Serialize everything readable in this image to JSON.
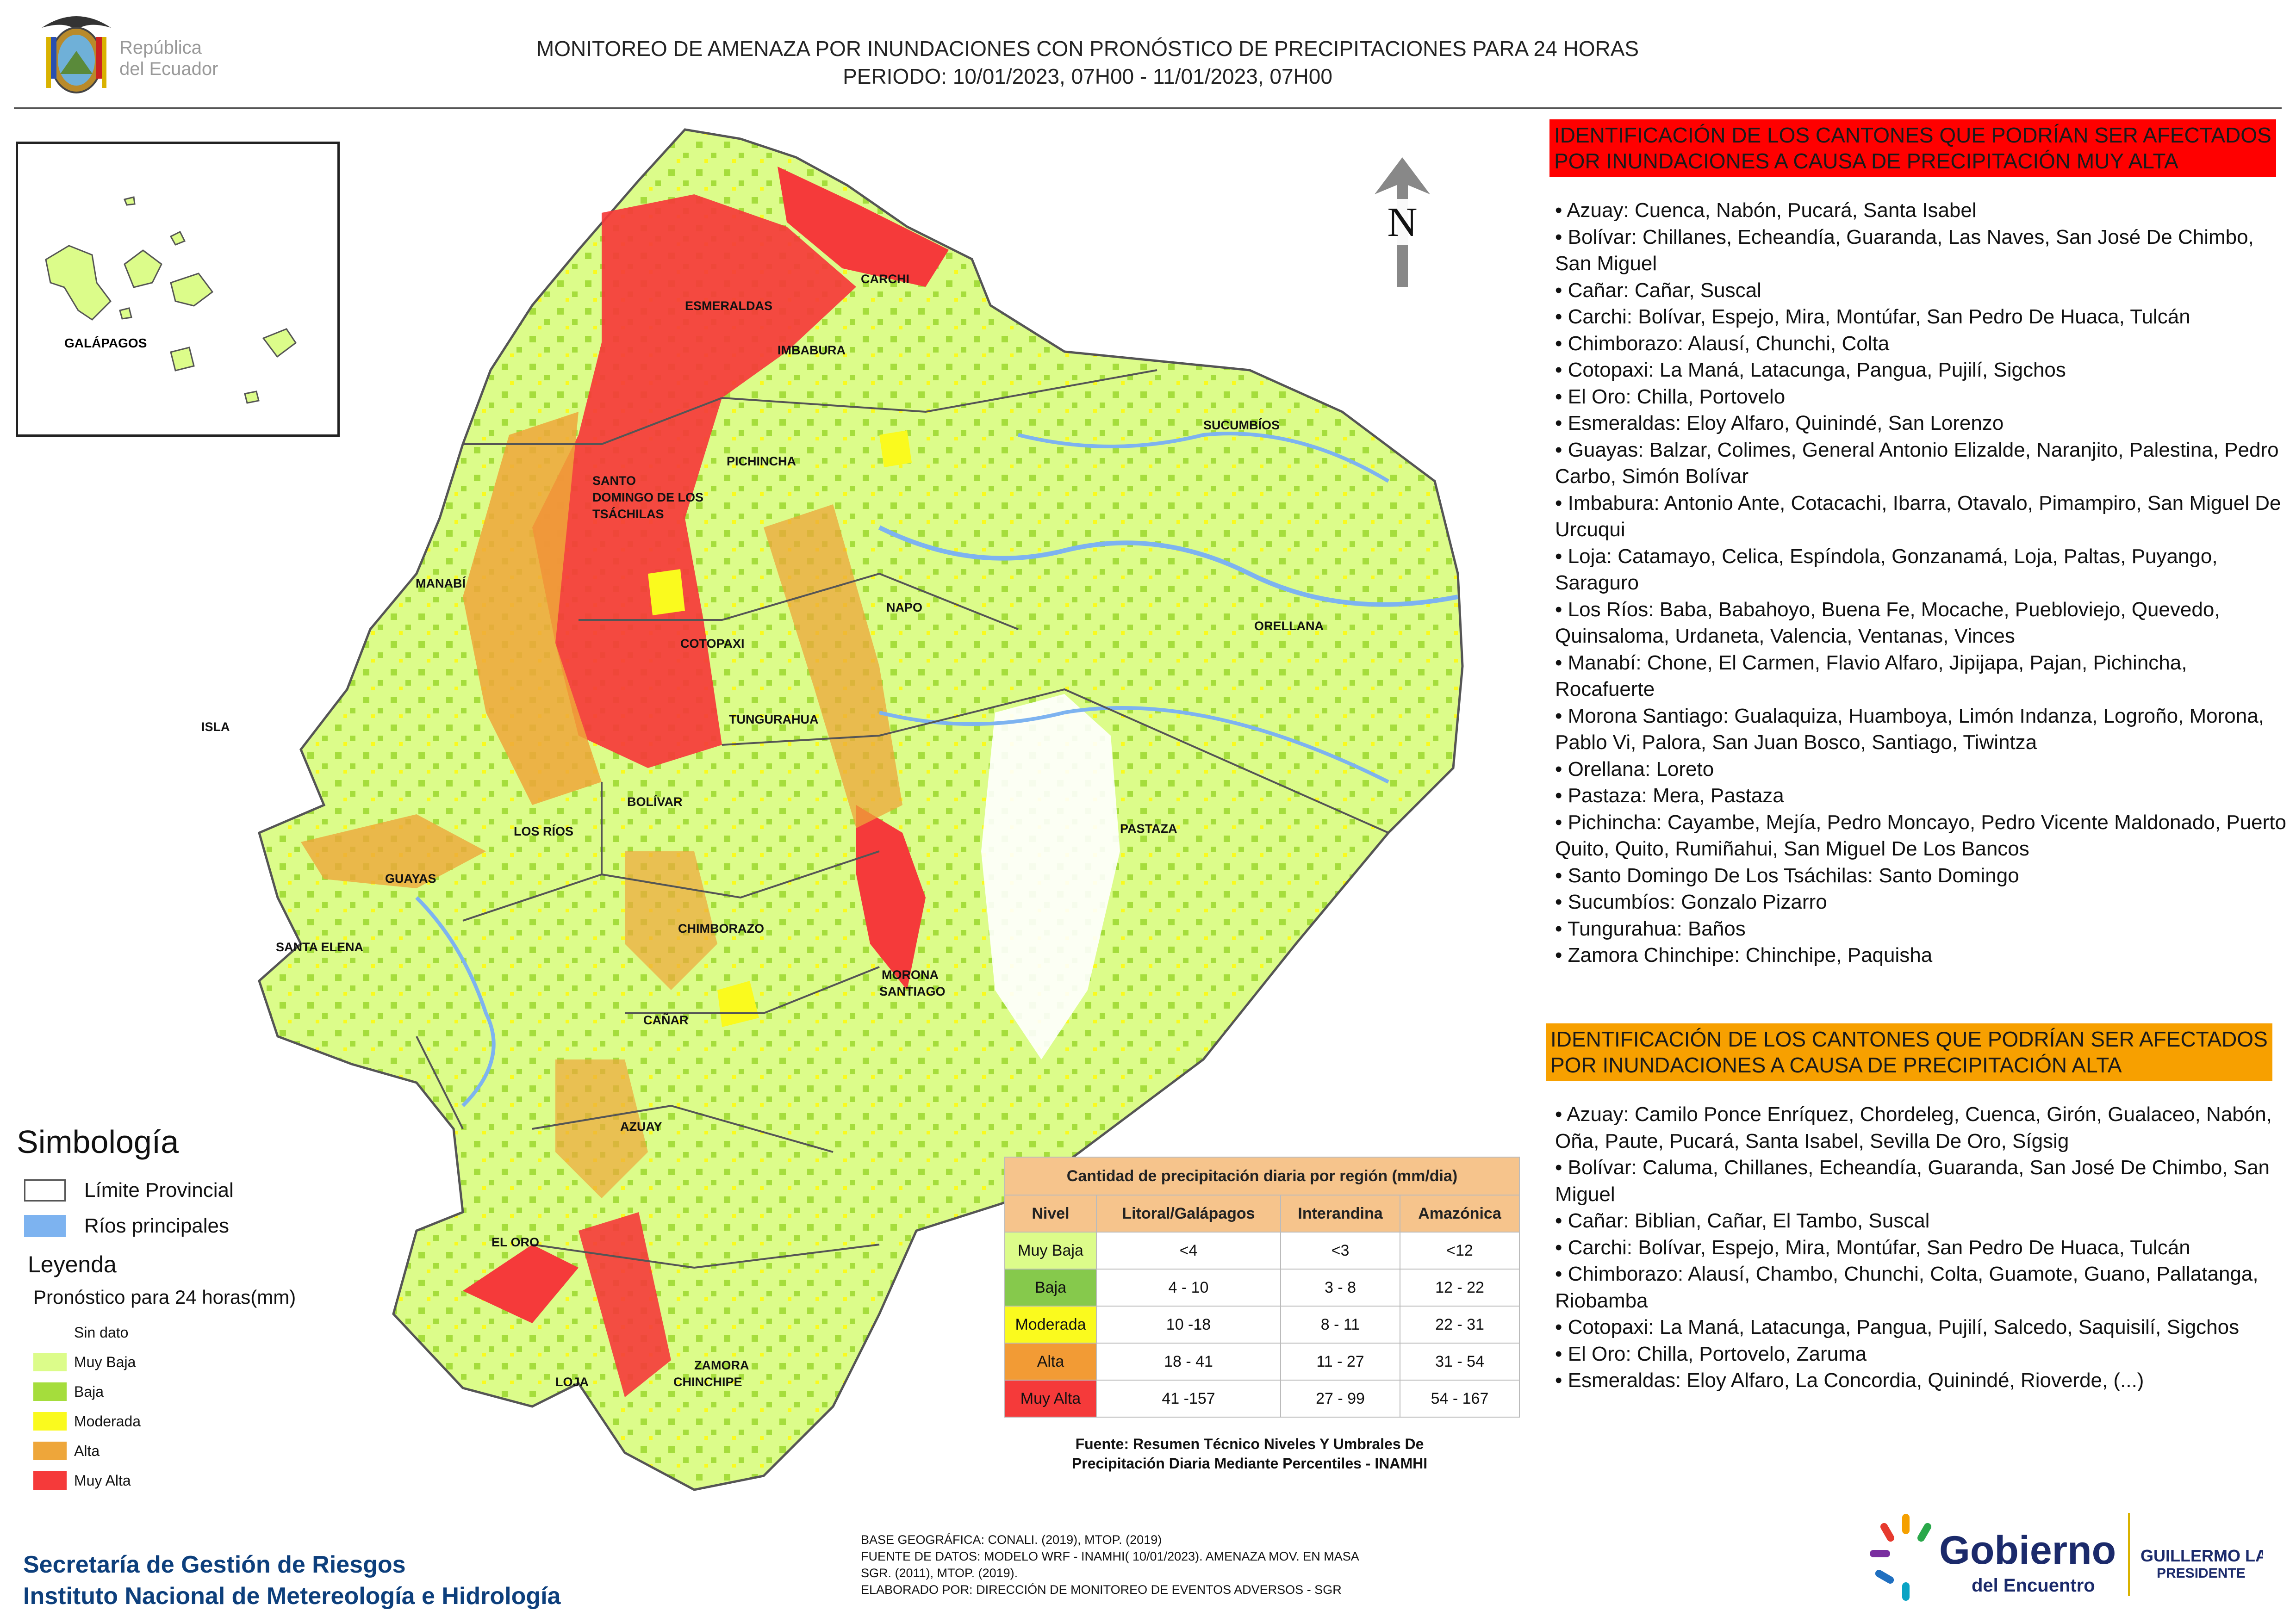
{
  "header": {
    "title_line1": "MONITOREO DE AMENAZA POR INUNDACIONES  CON PRONÓSTICO DE  PRECIPITACIONES PARA 24 HORAS",
    "title_line2": "PERIODO: 10/01/2023, 07H00 - 11/01/2023, 07H00",
    "republic_line1": "República",
    "republic_line2": "del Ecuador"
  },
  "map": {
    "provinces": [
      "CARCHI",
      "ESMERALDAS",
      "IMBABURA",
      "SUCUMBÍOS",
      "PICHINCHA",
      "SANTO",
      "DOMINGO DE LOS",
      "TSÁCHILAS",
      "MANABÍ",
      "NAPO",
      "ORELLANA",
      "COTOPAXI",
      "TUNGURAHUA",
      "ISLA",
      "BOLÍVAR",
      "LOS RÍOS",
      "PASTAZA",
      "GUAYAS",
      "CHIMBORAZO",
      "SANTA ELENA",
      "MORONA",
      "SANTIAGO",
      "CAÑAR",
      "AZUAY",
      "EL ORO",
      "ZAMORA",
      "CHINCHIPE",
      "LOJA"
    ],
    "inset_label": "GALÁPAGOS",
    "north_label": "N",
    "colors": {
      "muy_baja": "#dcfc8a",
      "baja": "#a5dd3c",
      "moderada": "#fafa1e",
      "alta": "#eea63a",
      "muy_alta": "#f53a3a",
      "rivers": "#7db3f0",
      "boundary": "#555555"
    }
  },
  "legend": {
    "simbologia": "Simbología",
    "limite": "Límite Provincial",
    "rios": "Ríos principales",
    "leyenda": "Leyenda",
    "subtitle": "Pronóstico para 24 horas(mm)",
    "levels": [
      "Sin dato",
      "Muy Baja",
      "Baja",
      "Moderada",
      "Alta",
      "Muy Alta"
    ]
  },
  "table": {
    "title": "Cantidad de precipitación diaria por región (mm/dia)",
    "headers": [
      "Nivel",
      "Litoral/Galápagos",
      "Interandina",
      "Amazónica"
    ],
    "rows": [
      {
        "level": "Muy Baja",
        "c1": "<4",
        "c2": "<3",
        "c3": "<12"
      },
      {
        "level": "Baja",
        "c1": "4 - 10",
        "c2": "3 - 8",
        "c3": "12 - 22"
      },
      {
        "level": "Moderada",
        "c1": "10 -18",
        "c2": "8 - 11",
        "c3": "22 - 31"
      },
      {
        "level": "Alta",
        "c1": "18 - 41",
        "c2": "11 - 27",
        "c3": "31 - 54"
      },
      {
        "level": "Muy Alta",
        "c1": "41 -157",
        "c2": "27 - 99",
        "c3": "54 - 167"
      }
    ],
    "source_line1": "Fuente: Resumen Técnico Niveles Y Umbrales De",
    "source_line2": "Precipitación Diaria Mediante Percentiles - INAMHI"
  },
  "muy_alta": {
    "heading": "IDENTIFICACIÓN DE LOS CANTONES QUE PODRÍAN SER AFECTADOS POR INUNDACIONES  A CAUSA DE PRECIPITACIÓN MUY ALTA",
    "items": [
      "Azuay: Cuenca, Nabón, Pucará, Santa Isabel",
      "Bolívar: Chillanes, Echeandía, Guaranda, Las Naves, San José De Chimbo, San Miguel",
      "Cañar: Cañar, Suscal",
      "Carchi: Bolívar, Espejo, Mira, Montúfar, San Pedro De Huaca, Tulcán",
      "Chimborazo: Alausí, Chunchi, Colta",
      "Cotopaxi: La Maná, Latacunga, Pangua, Pujilí, Sigchos",
      "El Oro: Chilla, Portovelo",
      "Esmeraldas: Eloy Alfaro, Quinindé, San Lorenzo",
      "Guayas: Balzar, Colimes, General Antonio Elizalde, Naranjito, Palestina, Pedro Carbo, Simón Bolívar",
      "Imbabura: Antonio Ante, Cotacachi, Ibarra, Otavalo, Pimampiro, San Miguel De Urcuqui",
      "Loja: Catamayo, Celica, Espíndola, Gonzanamá, Loja, Paltas, Puyango, Saraguro",
      "Los Ríos: Baba, Babahoyo, Buena Fe, Mocache, Puebloviejo, Quevedo, Quinsaloma, Urdaneta, Valencia, Ventanas, Vinces",
      "Manabí: Chone, El Carmen, Flavio Alfaro, Jipijapa, Pajan, Pichincha, Rocafuerte",
      "Morona Santiago: Gualaquiza, Huamboya, Limón Indanza, Logroño, Morona, Pablo Vi, Palora, San Juan Bosco, Santiago, Tiwintza",
      "Orellana: Loreto",
      "Pastaza: Mera, Pastaza",
      "Pichincha: Cayambe, Mejía, Pedro Moncayo, Pedro Vicente Maldonado, Puerto Quito, Quito, Rumiñahui, San Miguel De Los Bancos",
      "Santo Domingo De Los Tsáchilas: Santo Domingo",
      "Sucumbíos: Gonzalo Pizarro",
      "Tungurahua: Baños",
      "Zamora Chinchipe: Chinchipe, Paquisha"
    ]
  },
  "alta": {
    "heading": "IDENTIFICACIÓN DE LOS CANTONES QUE  PODRÍAN SER AFECTADOS POR INUNDACIONES  A CAUSA DE PRECIPITACIÓN ALTA",
    "items": [
      "Azuay: Camilo Ponce Enríquez, Chordeleg, Cuenca, Girón, Gualaceo, Nabón, Oña, Paute, Pucará, Santa Isabel, Sevilla De Oro, Sígsig",
      "Bolívar: Caluma, Chillanes, Echeandía, Guaranda, San José De Chimbo, San Miguel",
      "Cañar: Biblian, Cañar, El Tambo, Suscal",
      "Carchi: Bolívar, Espejo, Mira, Montúfar, San Pedro De Huaca, Tulcán",
      "Chimborazo: Alausí, Chambo, Chunchi, Colta, Guamote, Guano, Pallatanga, Riobamba",
      "Cotopaxi: La Maná, Latacunga, Pangua, Pujilí, Salcedo, Saquisilí, Sigchos",
      "El Oro: Chilla, Portovelo, Zaruma",
      "Esmeraldas: Eloy Alfaro, La Concordia, Quinindé, Rioverde, (...)"
    ]
  },
  "footer": {
    "org_line1": "Secretaría de Gestión de Riesgos",
    "org_line2": "Instituto Nacional de Metereología e Hidrología",
    "credit_line1": "BASE GEOGRÁFICA: CONALI. (2019), MTOP. (2019)",
    "credit_line2": "FUENTE DE DATOS: MODELO WRF - INAMHI( 10/01/2023).  AMENAZA MOV. EN MASA",
    "credit_line3": "SGR. (2011), MTOP. (2019).",
    "credit_line4": "ELABORADO POR: DIRECCIÓN DE MONITOREO DE EVENTOS ADVERSOS - SGR",
    "gob_word1": "Gobierno",
    "gob_word2": "del Encuentro",
    "president_line1": "GUILLERMO LASSO",
    "president_line2": "PRESIDENTE"
  }
}
